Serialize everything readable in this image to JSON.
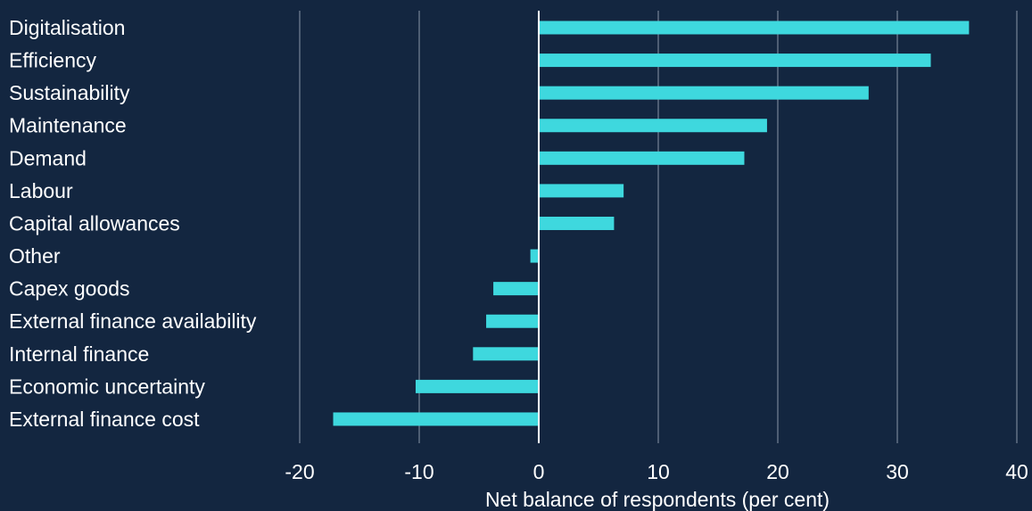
{
  "colors": {
    "background": "#132640",
    "bar": "#3ed8de",
    "grid": "#8a97a8",
    "zero_line": "#ffffff",
    "text": "#ffffff"
  },
  "chart_data": {
    "type": "bar",
    "orientation": "horizontal",
    "title": "",
    "xlabel": "Net balance of respondents (per cent)",
    "ylabel": "",
    "xlim": [
      -20,
      40
    ],
    "xticks": [
      -20,
      -10,
      0,
      10,
      20,
      30,
      40
    ],
    "grid": true,
    "legend": "none",
    "categories": [
      "Digitalisation",
      "Efficiency",
      "Sustainability",
      "Maintenance",
      "Demand",
      "Labour",
      "Capital allowances",
      "Other",
      "Capex goods",
      "External finance availability",
      "Internal finance",
      "Economic uncertainty",
      "External finance cost"
    ],
    "values": [
      36,
      32.8,
      27.6,
      19.1,
      17.2,
      7.1,
      6.3,
      -0.7,
      -3.8,
      -4.4,
      -5.5,
      -10.3,
      -17.2
    ]
  }
}
